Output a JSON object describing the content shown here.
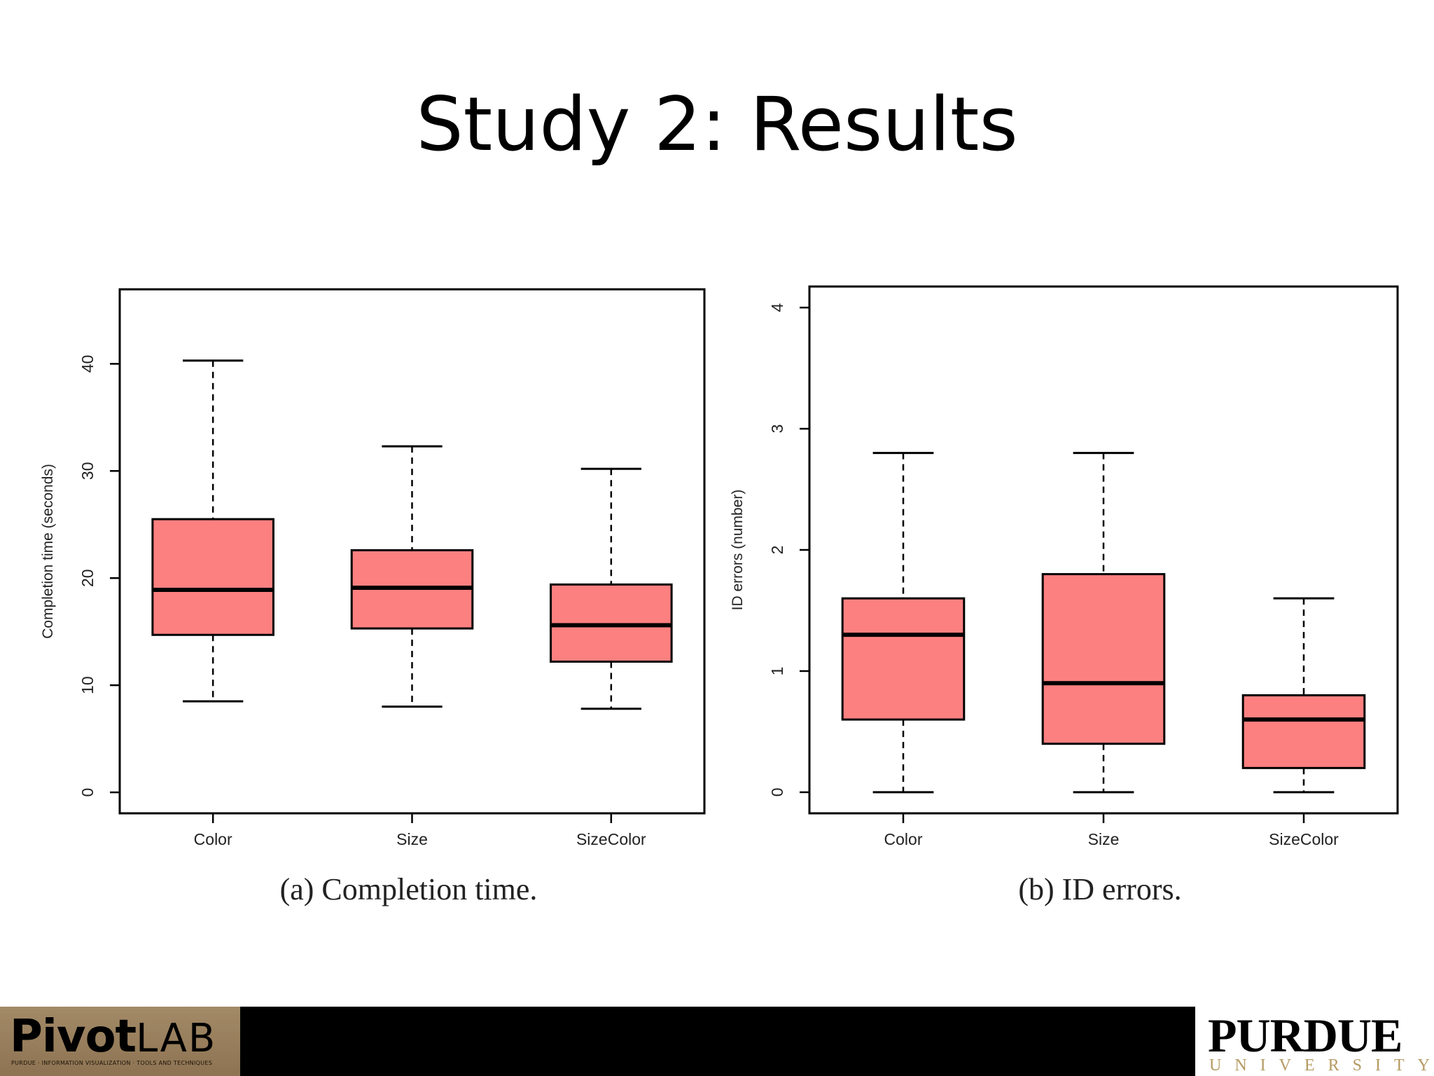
{
  "slide": {
    "title": "Study 2: Results"
  },
  "footer": {
    "left_logo": {
      "word_bold": "PivotLAB",
      "tagline": "PURDUE · INFORMATION VISUALIZATION · TOOLS AND TECHNIQUES"
    },
    "right_logo": {
      "word": "PURDUE",
      "sub": "UNIVERSITY."
    }
  },
  "colors": {
    "box_fill": "#fd8080",
    "stroke": "#000000",
    "footer": "#000000"
  },
  "chart_data": [
    {
      "type": "boxplot",
      "caption": "(a)  Completion time.",
      "xlabel": "",
      "ylabel": "Completion time (seconds)",
      "ylim": [
        0,
        45
      ],
      "yticks": [
        0,
        10,
        20,
        30,
        40
      ],
      "categories": [
        "Color",
        "Size",
        "SizeColor"
      ],
      "boxes": [
        {
          "category": "Color",
          "whisker_low": 8.5,
          "q1": 14.7,
          "median": 18.9,
          "q3": 25.5,
          "whisker_high": 40.3
        },
        {
          "category": "Size",
          "whisker_low": 8.0,
          "q1": 15.3,
          "median": 19.1,
          "q3": 22.6,
          "whisker_high": 32.3
        },
        {
          "category": "SizeColor",
          "whisker_low": 7.8,
          "q1": 12.2,
          "median": 15.6,
          "q3": 19.4,
          "whisker_high": 30.2
        }
      ],
      "grid": false
    },
    {
      "type": "boxplot",
      "caption": "(b)  ID errors.",
      "xlabel": "",
      "ylabel": "ID errors (number)",
      "ylim": [
        0,
        4
      ],
      "yticks": [
        0,
        1,
        2,
        3,
        4
      ],
      "categories": [
        "Color",
        "Size",
        "SizeColor"
      ],
      "boxes": [
        {
          "category": "Color",
          "whisker_low": 0.0,
          "q1": 0.6,
          "median": 1.3,
          "q3": 1.6,
          "whisker_high": 2.8
        },
        {
          "category": "Size",
          "whisker_low": 0.0,
          "q1": 0.4,
          "median": 0.9,
          "q3": 1.8,
          "whisker_high": 2.8
        },
        {
          "category": "SizeColor",
          "whisker_low": 0.0,
          "q1": 0.2,
          "median": 0.6,
          "q3": 0.8,
          "whisker_high": 1.6
        }
      ],
      "grid": false
    }
  ]
}
